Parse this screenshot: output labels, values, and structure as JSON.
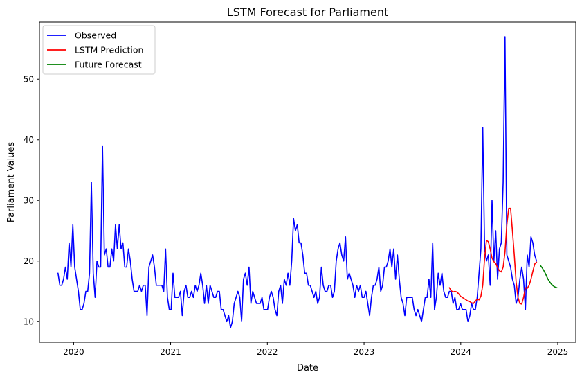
{
  "chart_data": {
    "type": "line",
    "title": "LSTM Forecast for Parliament",
    "xlabel": "Date",
    "ylabel": "Parliament Values",
    "xlim": [
      "2019-08-25",
      "2025-03-10"
    ],
    "ylim": [
      6.6,
      59.4
    ],
    "x_ticks": [
      {
        "date": "2020-01-01",
        "label": "2020"
      },
      {
        "date": "2021-01-01",
        "label": "2021"
      },
      {
        "date": "2022-01-01",
        "label": "2022"
      },
      {
        "date": "2023-01-01",
        "label": "2023"
      },
      {
        "date": "2024-01-01",
        "label": "2024"
      },
      {
        "date": "2025-01-01",
        "label": "2025"
      }
    ],
    "y_ticks": [
      10,
      20,
      30,
      40,
      50
    ],
    "grid": false,
    "legend_position": "top-left",
    "series": [
      {
        "name": "Observed",
        "color": "#0000ff",
        "start_date": "2019-11-03",
        "step_days": 7,
        "values": [
          18,
          16,
          16,
          17,
          19,
          17,
          23,
          19,
          26,
          19,
          17,
          15,
          12,
          12,
          13,
          15,
          15,
          18,
          33,
          18,
          14,
          20,
          19,
          19,
          39,
          21,
          22,
          19,
          19,
          22,
          20,
          26,
          22,
          26,
          22,
          23,
          19,
          19,
          22,
          20,
          17,
          15,
          15,
          15,
          16,
          15,
          16,
          16,
          11,
          19,
          20,
          21,
          19,
          16,
          16,
          16,
          16,
          15,
          22,
          14,
          12,
          12,
          18,
          14,
          14,
          14,
          15,
          11,
          15,
          16,
          14,
          14,
          15,
          14,
          16,
          15,
          16,
          18,
          16,
          13,
          16,
          13,
          16,
          15,
          14,
          14,
          15,
          15,
          12,
          12,
          11,
          10,
          11,
          9,
          10,
          13,
          14,
          15,
          14,
          10,
          17,
          18,
          16,
          19,
          13,
          15,
          14,
          13,
          13,
          13,
          14,
          12,
          12,
          12,
          14,
          15,
          14,
          12,
          11,
          15,
          16,
          13,
          17,
          16,
          18,
          16,
          20,
          27,
          25,
          26,
          23,
          23,
          21,
          18,
          18,
          16,
          16,
          15,
          14,
          15,
          13,
          14,
          19,
          16,
          15,
          15,
          16,
          16,
          14,
          15,
          20,
          22,
          23,
          21,
          20,
          24,
          17,
          18,
          17,
          16,
          14,
          16,
          15,
          16,
          14,
          14,
          15,
          13,
          11,
          14,
          16,
          16,
          17,
          19,
          15,
          16,
          19,
          19,
          20,
          22,
          19,
          22,
          17,
          21,
          17,
          14,
          13,
          11,
          14,
          14,
          14,
          14,
          12,
          11,
          12,
          11,
          10,
          12,
          14,
          14,
          17,
          14,
          23,
          12,
          14,
          18,
          16,
          18,
          15,
          14,
          14,
          15,
          15,
          13,
          14,
          12,
          12,
          13,
          12,
          12,
          12,
          10,
          11,
          13,
          12,
          12,
          14,
          18,
          22,
          42,
          22,
          20,
          21,
          16,
          30,
          20,
          25,
          17,
          22,
          23,
          33,
          57,
          21,
          20,
          19,
          17,
          16,
          13,
          14,
          17,
          19,
          17,
          12,
          21,
          19,
          24,
          23,
          21,
          20
        ]
      },
      {
        "name": "LSTM Prediction",
        "color": "#ff0000",
        "start_date": "2023-11-19",
        "step_days": 7,
        "values": [
          15.6,
          15.1,
          14.9,
          15.0,
          14.9,
          14.6,
          14.2,
          14.0,
          13.8,
          13.6,
          13.4,
          13.3,
          13.1,
          13.0,
          13.4,
          13.7,
          13.6,
          14.2,
          16.0,
          20.5,
          23.4,
          23.2,
          22.0,
          20.5,
          19.9,
          19.6,
          18.9,
          18.4,
          18.2,
          19.0,
          21.5,
          26.0,
          28.7,
          28.7,
          25.0,
          21.0,
          16.5,
          14.0,
          13.0,
          12.9,
          14.0,
          15.6,
          15.5,
          16.0,
          17.0,
          18.3,
          19.5,
          19.8
        ]
      },
      {
        "name": "Future Forecast",
        "color": "#008000",
        "start_date": "2024-10-27",
        "step_days": 7,
        "values": [
          19.3,
          18.9,
          18.4,
          17.8,
          17.1,
          16.6,
          16.2,
          15.9,
          15.7,
          15.6
        ]
      }
    ]
  }
}
